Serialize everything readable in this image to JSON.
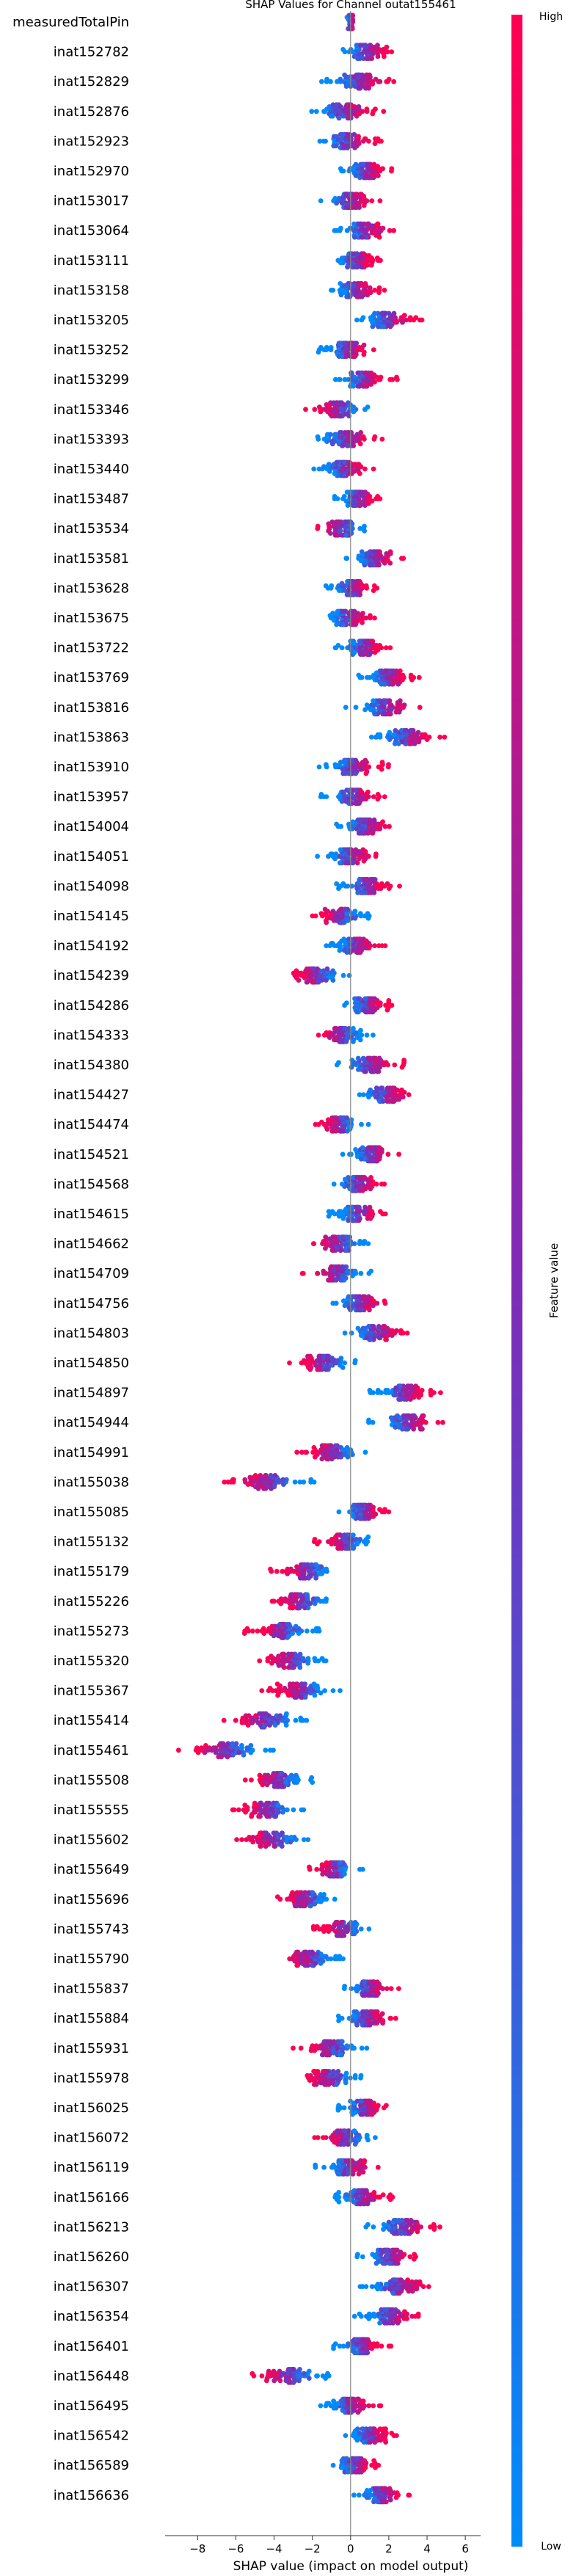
{
  "chart_data": {
    "type": "scatter",
    "subtype": "shap-beeswarm",
    "title": "SHAP Values for Channel outat155461",
    "xlabel": "SHAP value (impact on model output)",
    "xlim": [
      -9.7,
      6.8
    ],
    "xticks": [
      -8,
      -6,
      -4,
      -2,
      0,
      2,
      4,
      6
    ],
    "grid": false,
    "colorbar": {
      "label": "Feature value",
      "high_label": "High",
      "low_label": "Low",
      "high_color": "#ff0052",
      "mid_color": "#7e2bb8",
      "low_color": "#008bfb"
    },
    "features": [
      {
        "name": "measuredTotalPin",
        "center": 0.0,
        "spread": 0.25,
        "sign": 1
      },
      {
        "name": "inat152782",
        "center": 0.9,
        "spread": 1.0,
        "sign": 1
      },
      {
        "name": "inat152829",
        "center": 0.5,
        "spread": 1.3,
        "sign": 1
      },
      {
        "name": "inat152876",
        "center": -0.3,
        "spread": 1.3,
        "sign": 1
      },
      {
        "name": "inat152923",
        "center": -0.1,
        "spread": 1.1,
        "sign": 1
      },
      {
        "name": "inat152970",
        "center": 0.8,
        "spread": 0.9,
        "sign": 1
      },
      {
        "name": "inat153017",
        "center": 0.0,
        "spread": 1.0,
        "sign": 1
      },
      {
        "name": "inat153064",
        "center": 0.8,
        "spread": 1.1,
        "sign": 1
      },
      {
        "name": "inat153111",
        "center": 0.3,
        "spread": 0.9,
        "sign": 1
      },
      {
        "name": "inat153158",
        "center": 0.3,
        "spread": 1.0,
        "sign": 1
      },
      {
        "name": "inat153205",
        "center": 2.0,
        "spread": 1.1,
        "sign": 1
      },
      {
        "name": "inat153252",
        "center": -0.1,
        "spread": 1.0,
        "sign": 1
      },
      {
        "name": "inat153299",
        "center": 0.7,
        "spread": 1.1,
        "sign": 1
      },
      {
        "name": "inat153346",
        "center": -0.6,
        "spread": 1.1,
        "sign": -1
      },
      {
        "name": "inat153393",
        "center": -0.2,
        "spread": 1.2,
        "sign": 1
      },
      {
        "name": "inat153440",
        "center": -0.3,
        "spread": 1.1,
        "sign": 1
      },
      {
        "name": "inat153487",
        "center": 0.4,
        "spread": 0.8,
        "sign": 1
      },
      {
        "name": "inat153534",
        "center": -0.5,
        "spread": 1.1,
        "sign": -1
      },
      {
        "name": "inat153581",
        "center": 1.2,
        "spread": 1.0,
        "sign": 1
      },
      {
        "name": "inat153628",
        "center": 0.1,
        "spread": 0.9,
        "sign": 1
      },
      {
        "name": "inat153675",
        "center": -0.1,
        "spread": 1.0,
        "sign": 1
      },
      {
        "name": "inat153722",
        "center": 0.7,
        "spread": 1.0,
        "sign": 1
      },
      {
        "name": "inat153769",
        "center": 2.0,
        "spread": 1.0,
        "sign": 1
      },
      {
        "name": "inat153816",
        "center": 1.8,
        "spread": 1.3,
        "sign": 1
      },
      {
        "name": "inat153863",
        "center": 3.0,
        "spread": 1.2,
        "sign": 1
      },
      {
        "name": "inat153910",
        "center": 0.2,
        "spread": 1.2,
        "sign": 1
      },
      {
        "name": "inat153957",
        "center": 0.2,
        "spread": 1.1,
        "sign": 1
      },
      {
        "name": "inat154004",
        "center": 0.8,
        "spread": 1.0,
        "sign": 1
      },
      {
        "name": "inat154051",
        "center": 0.0,
        "spread": 1.1,
        "sign": 1
      },
      {
        "name": "inat154098",
        "center": 0.9,
        "spread": 1.1,
        "sign": 1
      },
      {
        "name": "inat154145",
        "center": -0.5,
        "spread": 1.0,
        "sign": -1
      },
      {
        "name": "inat154192",
        "center": 0.3,
        "spread": 1.0,
        "sign": 1
      },
      {
        "name": "inat154239",
        "center": -1.8,
        "spread": 1.1,
        "sign": -1
      },
      {
        "name": "inat154286",
        "center": 0.9,
        "spread": 0.8,
        "sign": 1
      },
      {
        "name": "inat154333",
        "center": -0.4,
        "spread": 1.1,
        "sign": -1
      },
      {
        "name": "inat154380",
        "center": 1.0,
        "spread": 1.2,
        "sign": 1
      },
      {
        "name": "inat154427",
        "center": 1.9,
        "spread": 1.1,
        "sign": 1
      },
      {
        "name": "inat154474",
        "center": -0.5,
        "spread": 0.9,
        "sign": -1
      },
      {
        "name": "inat154521",
        "center": 1.1,
        "spread": 1.0,
        "sign": 1
      },
      {
        "name": "inat154568",
        "center": 0.4,
        "spread": 1.0,
        "sign": 1
      },
      {
        "name": "inat154615",
        "center": 0.4,
        "spread": 1.0,
        "sign": 1
      },
      {
        "name": "inat154662",
        "center": -0.6,
        "spread": 1.2,
        "sign": -1
      },
      {
        "name": "inat154709",
        "center": -0.8,
        "spread": 1.2,
        "sign": -1
      },
      {
        "name": "inat154756",
        "center": 0.5,
        "spread": 1.0,
        "sign": 1
      },
      {
        "name": "inat154803",
        "center": 1.4,
        "spread": 1.1,
        "sign": 1
      },
      {
        "name": "inat154850",
        "center": -1.4,
        "spread": 1.2,
        "sign": -1
      },
      {
        "name": "inat154897",
        "center": 2.8,
        "spread": 1.2,
        "sign": 1
      },
      {
        "name": "inat154944",
        "center": 3.0,
        "spread": 1.3,
        "sign": 1
      },
      {
        "name": "inat154991",
        "center": -0.9,
        "spread": 1.2,
        "sign": -1
      },
      {
        "name": "inat155038",
        "center": -4.3,
        "spread": 1.5,
        "sign": -1
      },
      {
        "name": "inat155085",
        "center": 0.7,
        "spread": 0.9,
        "sign": 1
      },
      {
        "name": "inat155132",
        "center": -0.3,
        "spread": 1.0,
        "sign": -1
      },
      {
        "name": "inat155179",
        "center": -2.3,
        "spread": 1.2,
        "sign": -1
      },
      {
        "name": "inat155226",
        "center": -2.6,
        "spread": 1.1,
        "sign": -1
      },
      {
        "name": "inat155273",
        "center": -3.6,
        "spread": 1.3,
        "sign": -1
      },
      {
        "name": "inat155320",
        "center": -3.1,
        "spread": 1.2,
        "sign": -1
      },
      {
        "name": "inat155367",
        "center": -2.6,
        "spread": 1.3,
        "sign": -1
      },
      {
        "name": "inat155414",
        "center": -4.5,
        "spread": 1.4,
        "sign": -1
      },
      {
        "name": "inat155461",
        "center": -6.5,
        "spread": 1.8,
        "sign": -1
      },
      {
        "name": "inat155508",
        "center": -3.8,
        "spread": 1.2,
        "sign": -1
      },
      {
        "name": "inat155555",
        "center": -4.4,
        "spread": 1.3,
        "sign": -1
      },
      {
        "name": "inat155602",
        "center": -4.0,
        "spread": 1.5,
        "sign": -1
      },
      {
        "name": "inat155649",
        "center": -0.8,
        "spread": 0.9,
        "sign": -1
      },
      {
        "name": "inat155696",
        "center": -2.3,
        "spread": 1.2,
        "sign": -1
      },
      {
        "name": "inat155743",
        "center": -0.4,
        "spread": 1.0,
        "sign": -1
      },
      {
        "name": "inat155790",
        "center": -2.1,
        "spread": 1.2,
        "sign": -1
      },
      {
        "name": "inat155837",
        "center": 0.9,
        "spread": 1.1,
        "sign": 1
      },
      {
        "name": "inat155884",
        "center": 0.8,
        "spread": 1.0,
        "sign": 1
      },
      {
        "name": "inat155931",
        "center": -1.0,
        "spread": 1.3,
        "sign": -1
      },
      {
        "name": "inat155978",
        "center": -1.1,
        "spread": 1.2,
        "sign": -1
      },
      {
        "name": "inat156025",
        "center": 0.7,
        "spread": 0.9,
        "sign": 1
      },
      {
        "name": "inat156072",
        "center": -0.3,
        "spread": 1.0,
        "sign": -1
      },
      {
        "name": "inat156119",
        "center": -0.1,
        "spread": 1.1,
        "sign": 1
      },
      {
        "name": "inat156166",
        "center": 0.6,
        "spread": 1.0,
        "sign": 1
      },
      {
        "name": "inat156213",
        "center": 2.8,
        "spread": 1.3,
        "sign": 1
      },
      {
        "name": "inat156260",
        "center": 2.1,
        "spread": 1.1,
        "sign": 1
      },
      {
        "name": "inat156307",
        "center": 2.5,
        "spread": 1.3,
        "sign": 1
      },
      {
        "name": "inat156354",
        "center": 2.1,
        "spread": 1.2,
        "sign": 1
      },
      {
        "name": "inat156401",
        "center": 0.6,
        "spread": 1.0,
        "sign": 1
      },
      {
        "name": "inat156448",
        "center": -3.2,
        "spread": 1.4,
        "sign": -1
      },
      {
        "name": "inat156495",
        "center": 0.0,
        "spread": 1.0,
        "sign": 1
      },
      {
        "name": "inat156542",
        "center": 1.1,
        "spread": 0.9,
        "sign": 1
      },
      {
        "name": "inat156589",
        "center": 0.2,
        "spread": 0.8,
        "sign": 1
      },
      {
        "name": "inat156636",
        "center": 1.6,
        "spread": 1.0,
        "sign": 1
      }
    ]
  }
}
